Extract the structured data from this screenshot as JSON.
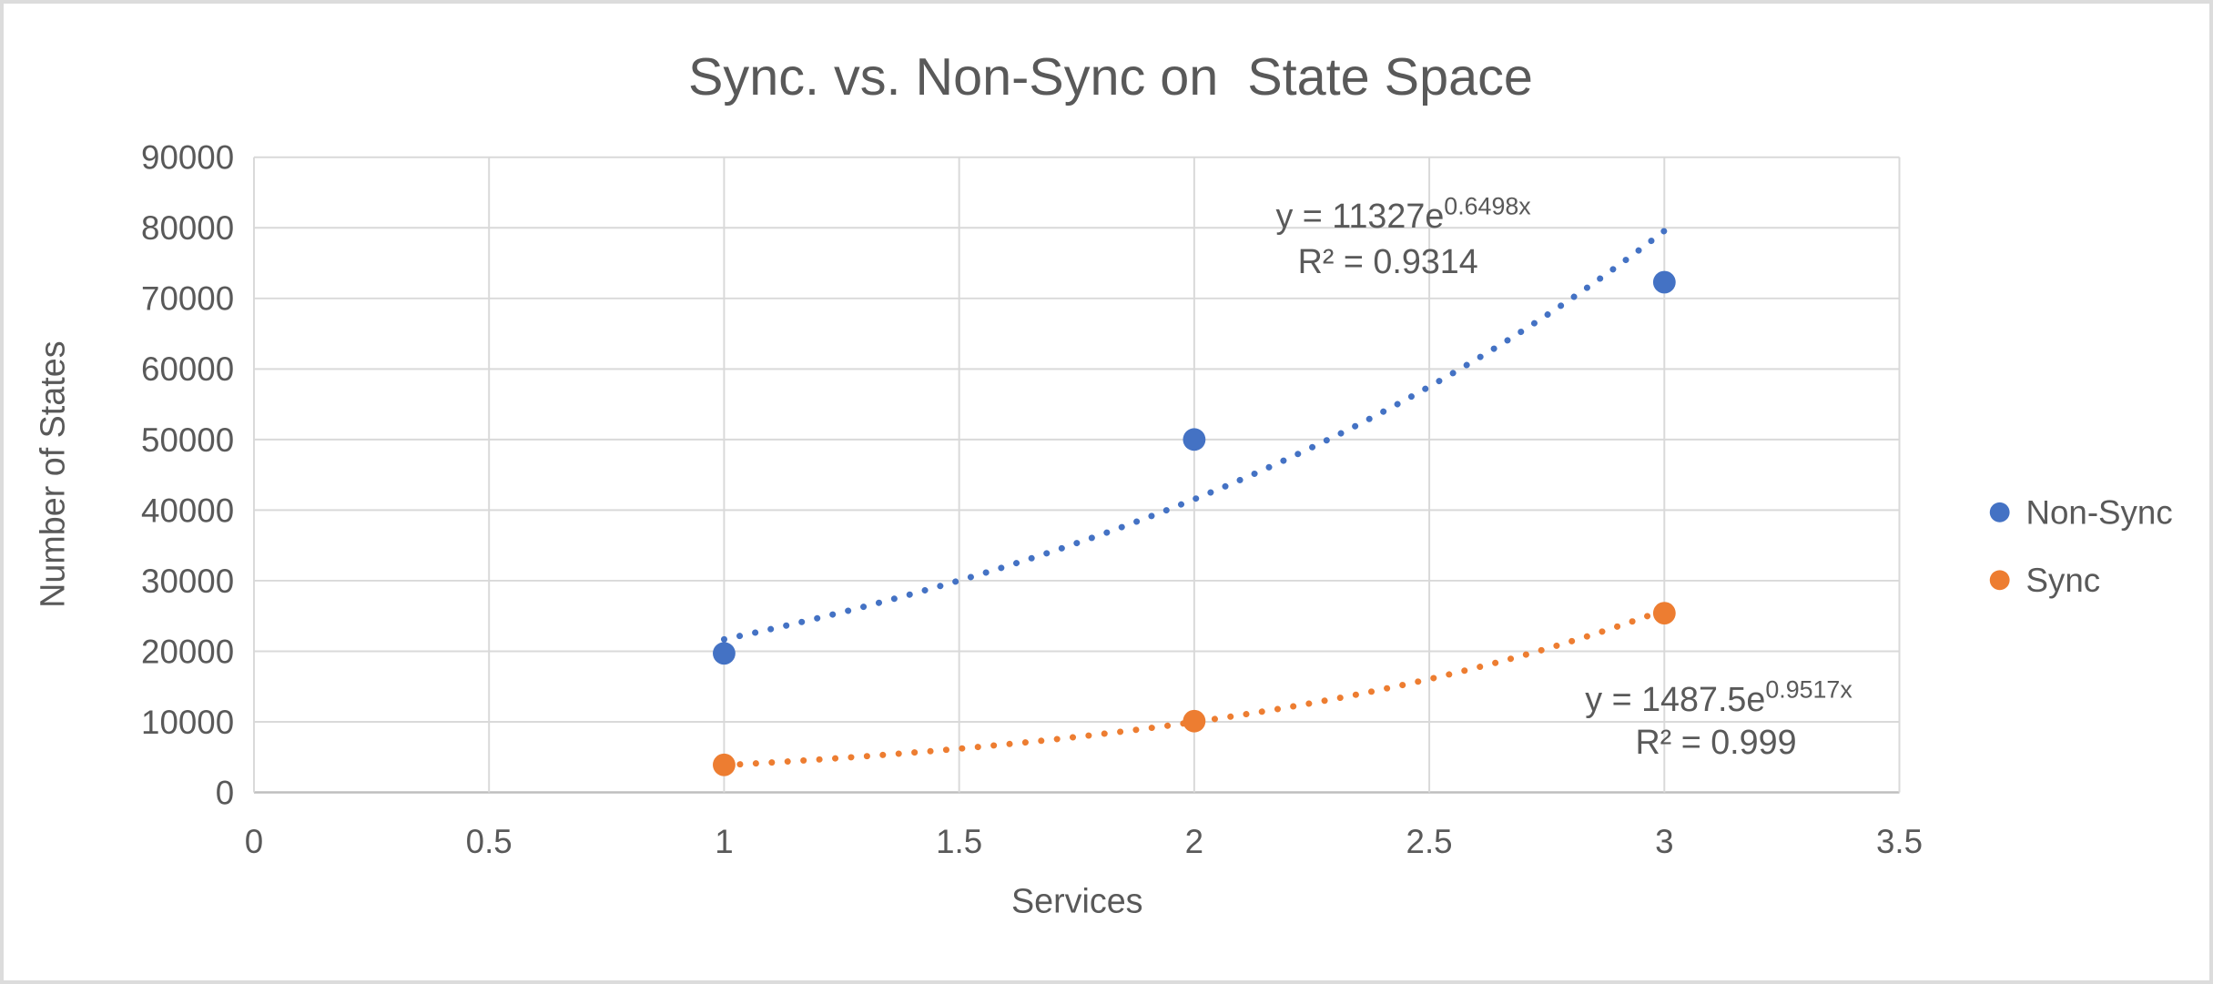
{
  "chart_data": {
    "type": "scatter",
    "title": "Sync. vs. Non-Sync on  State Space",
    "xlabel": "Services",
    "ylabel": "Number of States",
    "xlim": [
      0,
      3.5
    ],
    "xstep": 0.5,
    "ylim": [
      0,
      90000
    ],
    "ystep": 10000,
    "grid": true,
    "legend_position": "right",
    "x_tick_labels": [
      "0",
      "0.5",
      "1",
      "1.5",
      "2",
      "2.5",
      "3",
      "3.5"
    ],
    "y_tick_labels": [
      "0",
      "10000",
      "20000",
      "30000",
      "40000",
      "50000",
      "60000",
      "70000",
      "80000",
      "90000"
    ],
    "series": [
      {
        "name": "Non-Sync",
        "color": "#4472C4",
        "points": [
          [
            1,
            19700
          ],
          [
            2,
            50000
          ],
          [
            3,
            72300
          ]
        ],
        "trendline": {
          "kind": "exponential",
          "a": 11327,
          "b": 0.6498,
          "x_range": [
            1,
            3
          ],
          "equation_base": "y = 11327e",
          "equation_exponent": "0.6498x",
          "r2_label": "R² = 0.9314"
        }
      },
      {
        "name": "Sync",
        "color": "#ED7D31",
        "points": [
          [
            1,
            3900
          ],
          [
            2,
            10100
          ],
          [
            3,
            25400
          ]
        ],
        "trendline": {
          "kind": "exponential",
          "a": 1487.5,
          "b": 0.9517,
          "x_range": [
            1,
            3
          ],
          "equation_base": "y = 1487.5e",
          "equation_exponent": "0.9517x",
          "r2_label": "R² = 0.999"
        }
      }
    ]
  },
  "styles": {
    "series_colors": [
      "#4472C4",
      "#ED7D31"
    ],
    "text_color": "#595959",
    "gridline_color": "#D9D9D9",
    "axis_line_color": "#BFBFBF",
    "background": "#FFFFFF",
    "frame_border": "#DCDCDC"
  }
}
